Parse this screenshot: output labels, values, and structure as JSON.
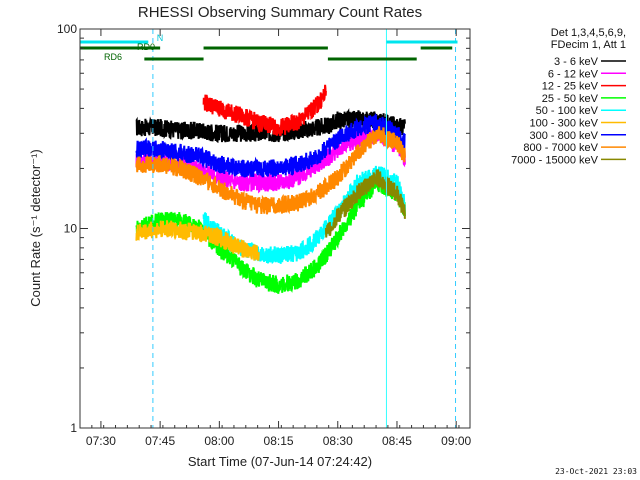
{
  "chart_data": {
    "type": "line",
    "title": "RHESSI Observing Summary Count Rates",
    "xlabel": "Start Time (07-Jun-14 07:24:42)",
    "ylabel": "Count Rate (s⁻¹ detector⁻¹)",
    "y_scale": "log",
    "xlim": [
      "07:24:42",
      "09:03:30"
    ],
    "ylim": [
      1,
      100
    ],
    "x_ticks": [
      "07:30",
      "07:45",
      "08:00",
      "08:15",
      "08:30",
      "08:45",
      "09:00"
    ],
    "y_ticks": [
      "1",
      "10",
      "100"
    ],
    "legend_header": [
      "Det 1,3,4,5,6,9,",
      "FDecim 1, Att 1"
    ],
    "legend_position": "right",
    "timestamp": "23-Oct-2021 23:03",
    "flag_labels": [
      "N",
      "RD0",
      "RD6"
    ],
    "vertical_lines": [
      {
        "time": "07:24:42",
        "style": "solid",
        "color": "#33ffff"
      },
      {
        "time": "07:43:10",
        "style": "dashed",
        "color": "#33ccff"
      },
      {
        "time": "08:42:20",
        "style": "solid",
        "color": "#33ffff"
      },
      {
        "time": "08:59:50",
        "style": "dashed",
        "color": "#33ccff"
      }
    ],
    "flags": [
      {
        "name": "N",
        "color": "#00e5ee",
        "segments": [
          [
            "07:24:42",
            "07:42:00"
          ],
          [
            "08:42:20",
            "09:00:20"
          ]
        ]
      },
      {
        "name": "RD0",
        "color": "#006400",
        "segments": [
          [
            "07:24:42",
            "07:45:00"
          ],
          [
            "07:56:00",
            "08:27:30"
          ],
          [
            "08:51:00",
            "08:59:00"
          ]
        ]
      },
      {
        "name": "RD6",
        "color": "#006400",
        "segments": [
          [
            "07:41:00",
            "07:56:00"
          ],
          [
            "08:27:30",
            "08:50:00"
          ]
        ]
      }
    ],
    "series": [
      {
        "name": "3 - 6 keV",
        "color": "#000000",
        "points": [
          [
            "07:39",
            32
          ],
          [
            "07:45",
            32
          ],
          [
            "07:50",
            31
          ],
          [
            "07:55",
            31
          ],
          [
            "08:00",
            30
          ],
          [
            "08:05",
            30
          ],
          [
            "08:10",
            30
          ],
          [
            "08:15",
            30
          ],
          [
            "08:20",
            31
          ],
          [
            "08:25",
            32
          ],
          [
            "08:28",
            33
          ],
          [
            "08:30",
            35
          ],
          [
            "08:35",
            35
          ],
          [
            "08:40",
            35
          ],
          [
            "08:45",
            33
          ],
          [
            "08:47",
            32
          ]
        ]
      },
      {
        "name": "6 - 12 keV",
        "color": "#ff00ff",
        "points": [
          [
            "07:39",
            22
          ],
          [
            "07:45",
            22
          ],
          [
            "07:50",
            21
          ],
          [
            "07:55",
            20
          ],
          [
            "08:00",
            18
          ],
          [
            "08:05",
            17
          ],
          [
            "08:10",
            17
          ],
          [
            "08:15",
            17
          ],
          [
            "08:20",
            18
          ],
          [
            "08:25",
            21
          ],
          [
            "08:28",
            23
          ],
          [
            "08:30",
            25
          ],
          [
            "08:35",
            28
          ],
          [
            "08:40",
            30
          ],
          [
            "08:45",
            26
          ],
          [
            "08:47",
            22
          ]
        ]
      },
      {
        "name": "12 - 25 keV",
        "color": "#ff0000",
        "points": [
          [
            "07:56",
            43
          ],
          [
            "08:00",
            40
          ],
          [
            "08:05",
            37
          ],
          [
            "08:10",
            34
          ],
          [
            "08:15",
            32
          ],
          [
            "08:20",
            34
          ],
          [
            "08:25",
            42
          ],
          [
            "08:27",
            48
          ]
        ]
      },
      {
        "name": "25 - 50 keV",
        "color": "#00ff00",
        "points": [
          [
            "07:39",
            10
          ],
          [
            "07:45",
            11
          ],
          [
            "07:50",
            11
          ],
          [
            "07:55",
            10
          ],
          [
            "08:00",
            8
          ],
          [
            "08:05",
            6.5
          ],
          [
            "08:10",
            5.5
          ],
          [
            "08:15",
            5.2
          ],
          [
            "08:20",
            5.5
          ],
          [
            "08:25",
            6.5
          ],
          [
            "08:30",
            9
          ],
          [
            "08:35",
            13
          ],
          [
            "08:40",
            17
          ],
          [
            "08:45",
            15
          ],
          [
            "08:47",
            12
          ]
        ]
      },
      {
        "name": "50 - 100 keV",
        "color": "#00ffff",
        "points": [
          [
            "07:56",
            11
          ],
          [
            "08:00",
            9.5
          ],
          [
            "08:05",
            8
          ],
          [
            "08:10",
            7.5
          ],
          [
            "08:15",
            7.3
          ],
          [
            "08:20",
            7.5
          ],
          [
            "08:25",
            9
          ],
          [
            "08:30",
            12
          ],
          [
            "08:35",
            17
          ],
          [
            "08:40",
            19
          ],
          [
            "08:45",
            17
          ],
          [
            "08:47",
            13
          ]
        ]
      },
      {
        "name": "100 - 300 keV",
        "color": "#ffbb00",
        "points": [
          [
            "07:39",
            9.5
          ],
          [
            "07:45",
            10
          ],
          [
            "07:50",
            9.8
          ],
          [
            "07:55",
            9.5
          ],
          [
            "08:00",
            9
          ],
          [
            "08:05",
            8
          ],
          [
            "08:10",
            7.5
          ]
        ]
      },
      {
        "name": "300 - 800 keV",
        "color": "#0000ff",
        "points": [
          [
            "07:39",
            25
          ],
          [
            "07:45",
            25
          ],
          [
            "07:50",
            24
          ],
          [
            "07:55",
            23
          ],
          [
            "08:00",
            21
          ],
          [
            "08:05",
            20
          ],
          [
            "08:10",
            20
          ],
          [
            "08:15",
            20
          ],
          [
            "08:20",
            21
          ],
          [
            "08:25",
            23
          ],
          [
            "08:28",
            26
          ],
          [
            "08:30",
            28
          ],
          [
            "08:35",
            32
          ],
          [
            "08:40",
            34
          ],
          [
            "08:45",
            30
          ],
          [
            "08:47",
            27
          ]
        ]
      },
      {
        "name": "800 - 7000 keV",
        "color": "#ff8800",
        "points": [
          [
            "07:39",
            21
          ],
          [
            "07:45",
            21
          ],
          [
            "07:50",
            20
          ],
          [
            "07:55",
            18
          ],
          [
            "08:00",
            16
          ],
          [
            "08:05",
            14
          ],
          [
            "08:10",
            13
          ],
          [
            "08:15",
            13
          ],
          [
            "08:20",
            13.5
          ],
          [
            "08:25",
            15
          ],
          [
            "08:30",
            18
          ],
          [
            "08:35",
            24
          ],
          [
            "08:40",
            30
          ],
          [
            "08:45",
            27
          ],
          [
            "08:47",
            23
          ]
        ]
      },
      {
        "name": "7000 - 15000 keV",
        "color": "#888800",
        "points": [
          [
            "08:27",
            9.5
          ],
          [
            "08:30",
            11.5
          ],
          [
            "08:35",
            15
          ],
          [
            "08:40",
            18
          ],
          [
            "08:45",
            15
          ],
          [
            "08:47",
            12
          ]
        ]
      }
    ]
  }
}
